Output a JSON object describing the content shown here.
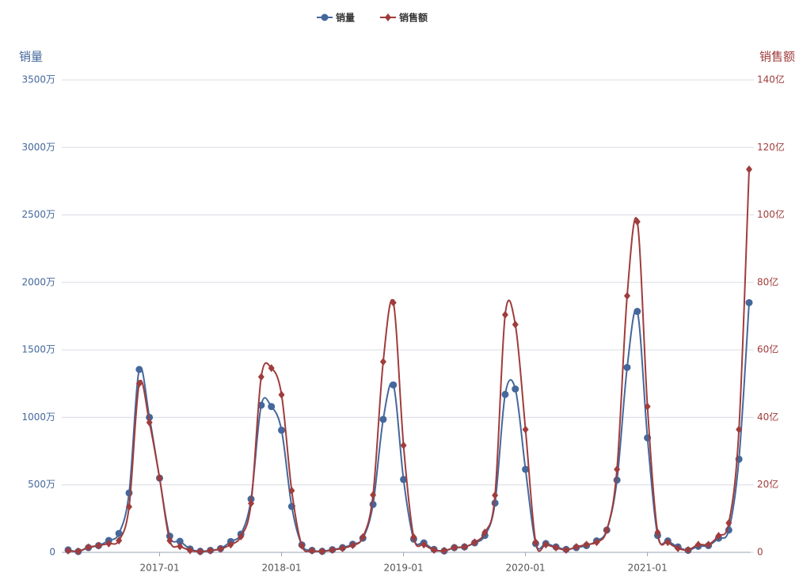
{
  "chart_data": {
    "type": "line",
    "ylabel": "销量",
    "y2label": "销售额",
    "categories": [
      null,
      null,
      null,
      null,
      null,
      null,
      null,
      null,
      null,
      "2017-01",
      null,
      null,
      null,
      null,
      null,
      null,
      null,
      null,
      null,
      null,
      null,
      "2018-01",
      null,
      null,
      null,
      null,
      null,
      null,
      null,
      null,
      null,
      null,
      null,
      "2019-01",
      null,
      null,
      null,
      null,
      null,
      null,
      null,
      null,
      null,
      null,
      null,
      "2020-01",
      null,
      null,
      null,
      null,
      null,
      null,
      null,
      null,
      null,
      null,
      null,
      "2021-01",
      null,
      null,
      null,
      null,
      null,
      null,
      null,
      null,
      null,
      null
    ],
    "series": [
      {
        "name": "销量",
        "color": "#44689b",
        "marker": "circle",
        "axis": "y",
        "values": [
          18,
          6,
          35,
          50,
          88,
          140,
          440,
          1355,
          1000,
          550,
          120,
          82,
          25,
          8,
          15,
          28,
          80,
          135,
          395,
          1090,
          1080,
          905,
          340,
          55,
          15,
          8,
          20,
          35,
          60,
          105,
          355,
          985,
          1240,
          540,
          98,
          70,
          22,
          10,
          35,
          40,
          70,
          125,
          365,
          1170,
          1210,
          615,
          65,
          65,
          40,
          22,
          35,
          50,
          85,
          165,
          535,
          1370,
          1785,
          848,
          125,
          85,
          40,
          15,
          45,
          50,
          105,
          165,
          690,
          1850
        ]
      },
      {
        "name": "销售额",
        "color": "#a03c3c",
        "marker": "diamond",
        "axis": "y2",
        "values": [
          0.5,
          0.3,
          1.5,
          2,
          2.6,
          3.5,
          13.5,
          50,
          38.5,
          22,
          3.5,
          1.8,
          0.6,
          0.2,
          0.5,
          1,
          2.3,
          4.7,
          14.5,
          52,
          54.6,
          46.7,
          18.3,
          2,
          0.5,
          0.3,
          0.7,
          1.2,
          2.1,
          4.5,
          17,
          56.5,
          74,
          31.7,
          4.5,
          2.3,
          0.7,
          0.5,
          1.4,
          1.6,
          3,
          5.9,
          16.9,
          70.4,
          67.5,
          36.4,
          3,
          2.3,
          1.4,
          0.7,
          1.6,
          2.3,
          3,
          6.6,
          24.6,
          76,
          98,
          43.2,
          5.9,
          3,
          1.2,
          0.7,
          2.3,
          2.3,
          4.9,
          8.7,
          36.4,
          113.5
        ]
      }
    ],
    "ylim": [
      0,
      3500
    ],
    "yticks": [
      0,
      {
        "value": 500,
        "label": "500万"
      },
      {
        "value": 1000,
        "label": "1000万"
      },
      {
        "value": 1500,
        "label": "1500万"
      },
      {
        "value": 2000,
        "label": "2000万"
      },
      {
        "value": 2500,
        "label": "2500万"
      },
      {
        "value": 3000,
        "label": "3000万"
      },
      {
        "value": 3500,
        "label": "3500万"
      }
    ],
    "y2lim": [
      0,
      140
    ],
    "y2ticks": [
      0,
      {
        "value": 20,
        "label": "20亿"
      },
      {
        "value": 40,
        "label": "40亿"
      },
      {
        "value": 60,
        "label": "60亿"
      },
      {
        "value": 80,
        "label": "80亿"
      },
      {
        "value": 100,
        "label": "100亿"
      },
      {
        "value": 120,
        "label": "120亿"
      },
      {
        "value": 140,
        "label": "140亿"
      }
    ],
    "grid": true,
    "legend": "top"
  }
}
